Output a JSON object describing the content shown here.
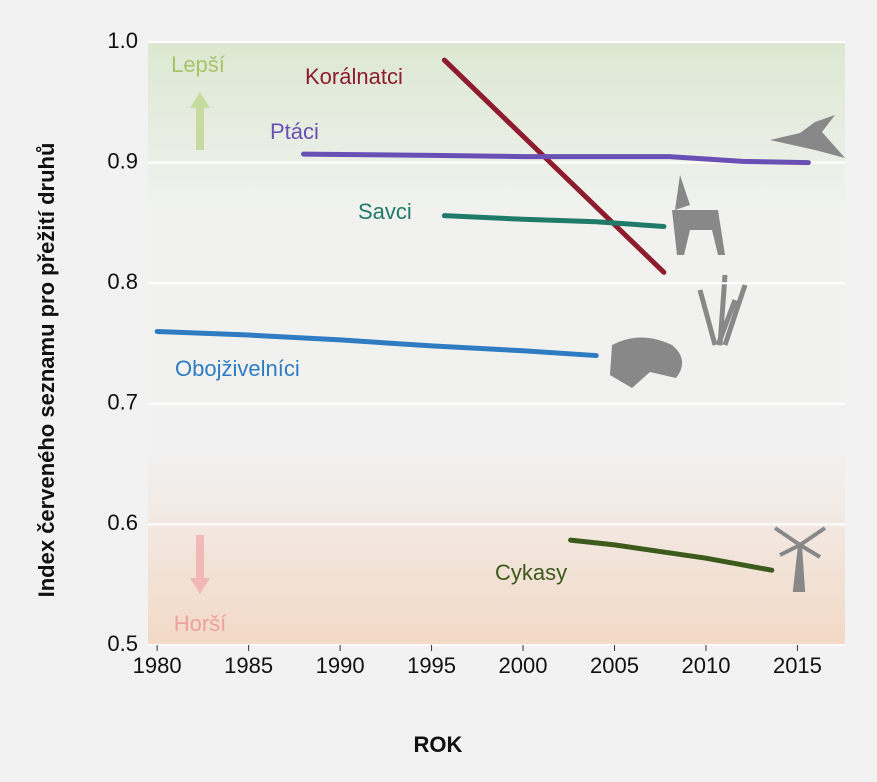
{
  "chart_data": {
    "type": "line",
    "x_label": "ROK",
    "y_label": "Index červeného seznamu pro přežití druhů",
    "annotations": {
      "better": "Lepší",
      "worse": "Horší"
    },
    "xlim": [
      1979.5,
      2017.6
    ],
    "xticks": [
      1980,
      1985,
      1990,
      1995,
      2000,
      2005,
      2010,
      2015
    ],
    "ylim": [
      0.5,
      1.0
    ],
    "yticks": [
      0.5,
      0.6,
      0.7,
      0.8,
      0.9,
      {
        "value": 1.0,
        "label": "1.0"
      }
    ],
    "grid": true,
    "series": [
      {
        "name": "Korálnatci",
        "color": "#8e1c2e",
        "x": [
          1995.7,
          2007.7
        ],
        "values": [
          0.985,
          0.809
        ]
      },
      {
        "name": "Ptáci",
        "color": "#6a50b4",
        "x": [
          1988,
          1995,
          2000,
          2005,
          2008,
          2012,
          2015.6
        ],
        "values": [
          0.907,
          0.906,
          0.905,
          0.905,
          0.905,
          0.901,
          0.9
        ]
      },
      {
        "name": "Savci",
        "color": "#1f7a6a",
        "x": [
          1995.7,
          2000,
          2004,
          2007.7
        ],
        "values": [
          0.856,
          0.853,
          0.851,
          0.847
        ]
      },
      {
        "name": "Obojživelníci",
        "color": "#2f7cc2",
        "x": [
          1980,
          1985,
          1990,
          1995,
          2000,
          2004
        ],
        "values": [
          0.76,
          0.757,
          0.753,
          0.748,
          0.744,
          0.74
        ]
      },
      {
        "name": "Cykasy",
        "color": "#3c5a1c",
        "x": [
          2002.6,
          2005,
          2010,
          2013.6
        ],
        "values": [
          0.587,
          0.583,
          0.572,
          0.562
        ]
      }
    ]
  }
}
